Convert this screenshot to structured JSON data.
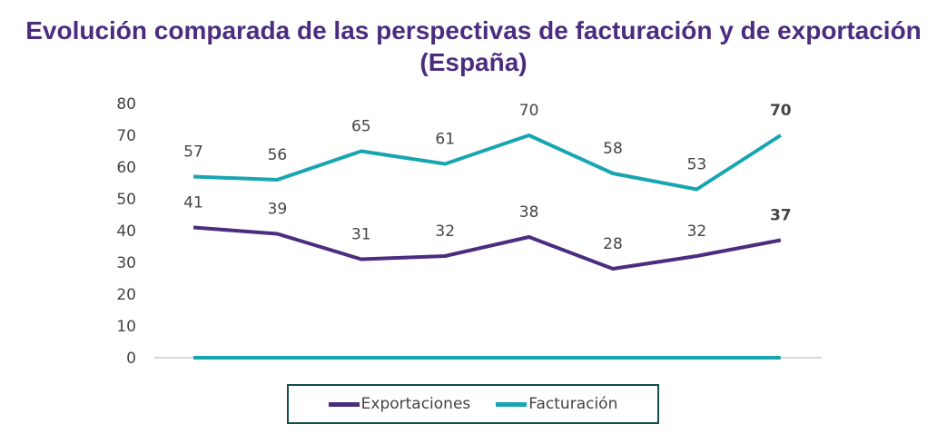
{
  "chart_data": {
    "type": "line",
    "title": "Evolución comparada de las perspectivas de facturación y de exportación (España)",
    "xlabel": "",
    "ylabel": "",
    "ylim": [
      0,
      80
    ],
    "yticks": [
      "0",
      "10",
      "20",
      "30",
      "40",
      "50",
      "60",
      "70",
      "80"
    ],
    "grid": false,
    "legend": "bottom",
    "series": [
      {
        "name": "Exportaciones",
        "color": "#4B2C7F",
        "values": [
          41,
          39,
          31,
          32,
          38,
          28,
          32,
          37
        ],
        "last_label_color": "#D6263A"
      },
      {
        "name": "Facturación",
        "color": "#17A6B0",
        "values": [
          57,
          56,
          65,
          61,
          70,
          58,
          53,
          70
        ],
        "last_label_color": "#4B2C7F"
      },
      {
        "color": "#17A6B0",
        "values": [
          0,
          0,
          0,
          0,
          0,
          0,
          0,
          0
        ],
        "show_labels": false
      }
    ]
  }
}
